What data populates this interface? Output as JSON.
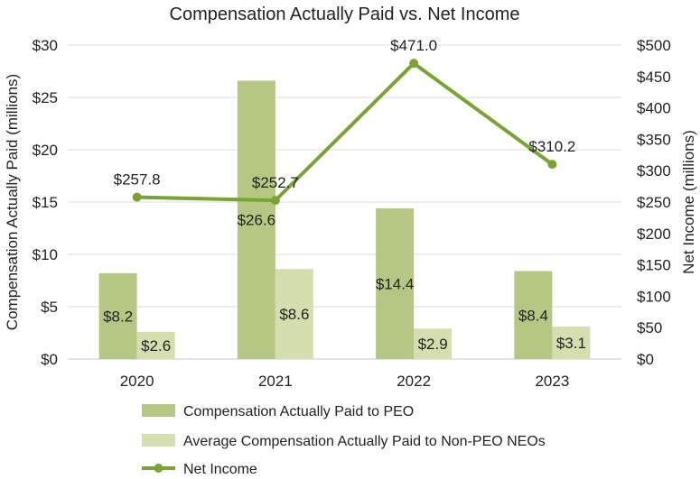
{
  "chart_data": {
    "type": "bar+line",
    "title": "Compensation Actually Paid vs. Net Income",
    "categories": [
      "2020",
      "2021",
      "2022",
      "2023"
    ],
    "left_axis": {
      "label": "Compensation Actually Paid (millions)",
      "min": 0,
      "max": 30,
      "step": 5,
      "tick_labels": [
        "$0",
        "$5",
        "$10",
        "$15",
        "$20",
        "$25",
        "$30"
      ]
    },
    "right_axis": {
      "label": "Net Income (millions)",
      "min": 0,
      "max": 500,
      "step": 50,
      "tick_labels": [
        "$0",
        "$50",
        "$100",
        "$150",
        "$200",
        "$250",
        "$300",
        "$350",
        "$400",
        "$450",
        "$500"
      ]
    },
    "grid": true,
    "legend_position": "bottom",
    "series": [
      {
        "name": "Compensation Actually Paid to PEO",
        "kind": "bar",
        "axis": "left",
        "color": "#b5c782",
        "values": [
          8.2,
          26.6,
          14.4,
          8.4
        ],
        "labels": [
          "$8.2",
          "$26.6",
          "$14.4",
          "$8.4"
        ]
      },
      {
        "name": "Average Compensation Actually Paid to Non-PEO NEOs",
        "kind": "bar",
        "axis": "left",
        "color": "#d4deaf",
        "values": [
          2.6,
          8.6,
          2.9,
          3.1
        ],
        "labels": [
          "$2.6",
          "$8.6",
          "$2.9",
          "$3.1"
        ]
      },
      {
        "name": "Net Income",
        "kind": "line",
        "axis": "right",
        "color": "#7aa334",
        "values": [
          257.8,
          252.7,
          471.0,
          310.2
        ],
        "labels": [
          "$257.8",
          "$252.7",
          "$471.0",
          "$310.2"
        ]
      }
    ]
  }
}
